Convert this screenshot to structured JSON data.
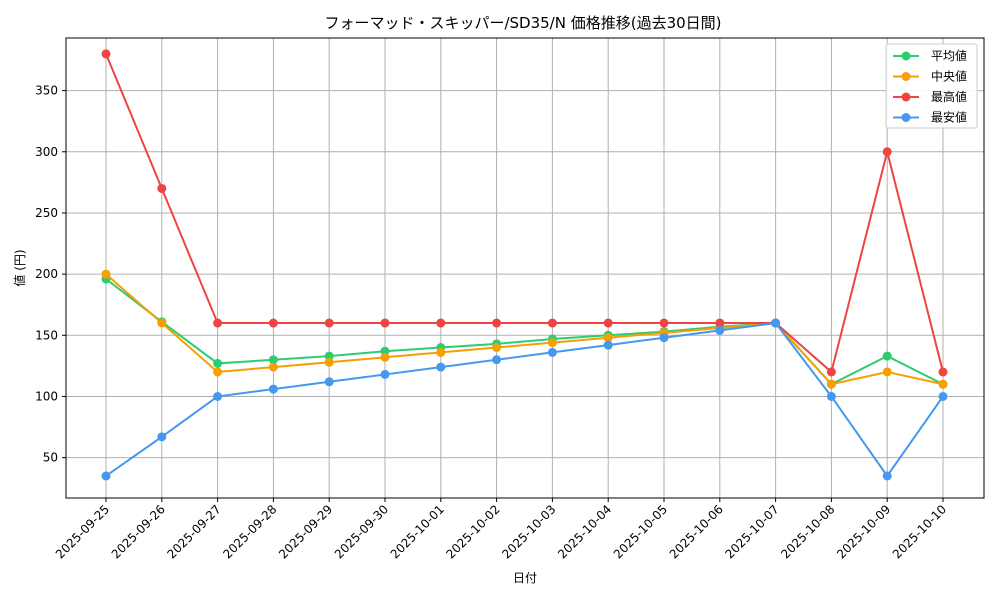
{
  "chart_data": {
    "type": "line",
    "title": "フォーマッド・スキッパー/SD35/N 価格推移(過去30日間)",
    "xlabel": "日付",
    "ylabel": "値 (円)",
    "ylim": [
      17,
      393
    ],
    "yticks": [
      50,
      100,
      150,
      200,
      250,
      300,
      350
    ],
    "grid": true,
    "legend_position": "top-right",
    "categories": [
      "2025-09-25",
      "2025-09-26",
      "2025-09-27",
      "2025-09-28",
      "2025-09-29",
      "2025-09-30",
      "2025-10-01",
      "2025-10-02",
      "2025-10-03",
      "2025-10-04",
      "2025-10-05",
      "2025-10-06",
      "2025-10-07",
      "2025-10-08",
      "2025-10-09",
      "2025-10-10"
    ],
    "series": [
      {
        "name": "平均値",
        "color": "#2ecc71",
        "values": [
          196,
          161,
          127,
          130,
          133,
          137,
          140,
          143,
          147,
          150,
          153,
          157,
          160,
          110,
          133,
          110
        ]
      },
      {
        "name": "中央値",
        "color": "#f5a000",
        "values": [
          200,
          160,
          120,
          124,
          128,
          132,
          136,
          140,
          144,
          148,
          152,
          156,
          160,
          110,
          120,
          110
        ]
      },
      {
        "name": "最高値",
        "color": "#ee4444",
        "values": [
          380,
          270,
          160,
          160,
          160,
          160,
          160,
          160,
          160,
          160,
          160,
          160,
          160,
          120,
          300,
          120
        ]
      },
      {
        "name": "最安値",
        "color": "#4499ee",
        "values": [
          35,
          67,
          100,
          106,
          112,
          118,
          124,
          130,
          136,
          142,
          148,
          154,
          160,
          100,
          35,
          100
        ]
      }
    ]
  }
}
